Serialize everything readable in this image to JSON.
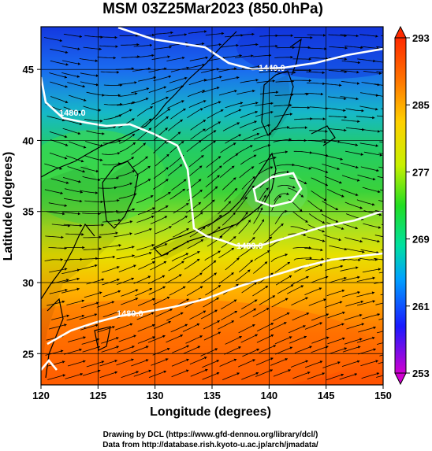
{
  "title": "MSM 03Z25Mar2023 (850.0hPa)",
  "xlabel": "Longitude (degrees)",
  "ylabel": "Latitude  (degrees)",
  "xticks": [
    "120",
    "125",
    "130",
    "135",
    "140",
    "145",
    "150"
  ],
  "yticks": [
    "25",
    "30",
    "35",
    "40",
    "45"
  ],
  "colorbar_ticks": [
    "293",
    "285",
    "277",
    "269",
    "261",
    "253"
  ],
  "contour_labels": [
    "1440.0",
    "1480.0",
    "1480.0",
    "1480.0"
  ],
  "credit_line1": "Drawing by DCL (https://www.gfd-dennou.org/library/dcl/)",
  "credit_line2": "Data from http://database.rish.kyoto-u.ac.jp/arch/jmadata/",
  "map_data": {
    "lon_range": [
      120,
      150
    ],
    "lat_range": [
      22.8,
      48
    ],
    "colorbar_range": [
      253,
      293
    ],
    "colormap": [
      "#ff00ff",
      "#1a1aff",
      "#00a0ff",
      "#00e0a0",
      "#22dd22",
      "#c8f000",
      "#ffd000",
      "#ff7000",
      "#ff2a00"
    ]
  }
}
